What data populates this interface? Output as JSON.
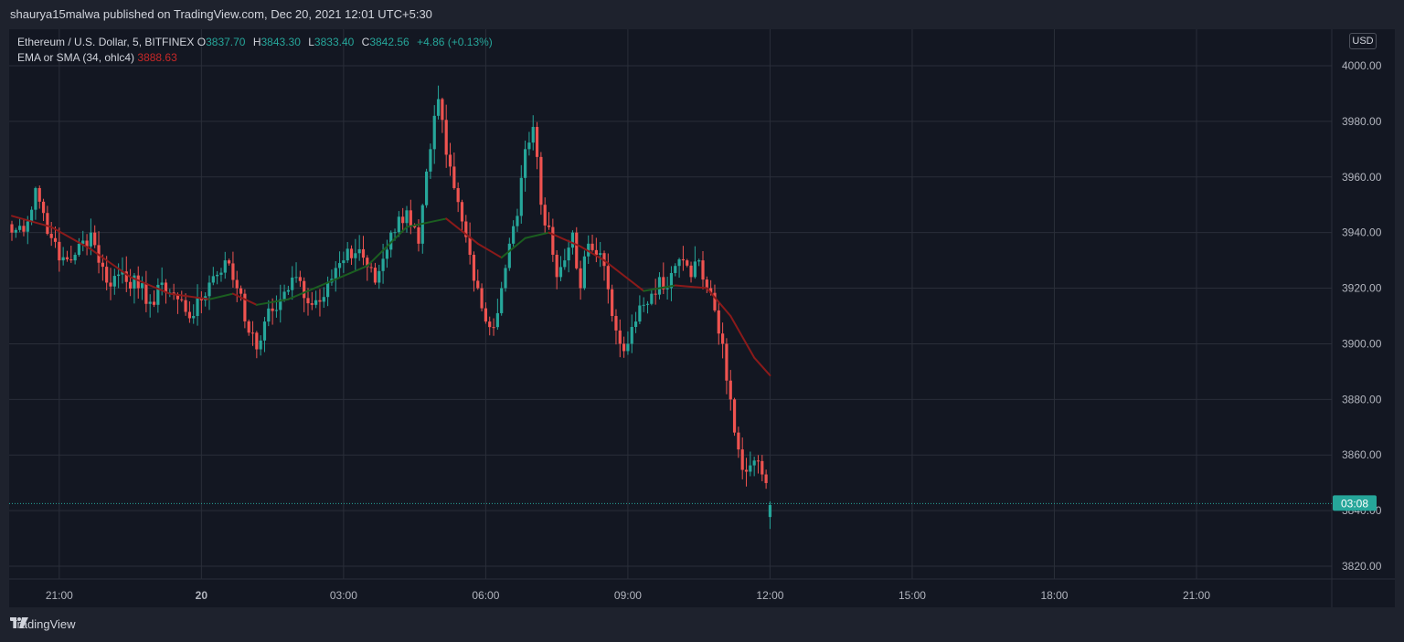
{
  "header": {
    "published_text": "shaurya15malwa published on TradingView.com, Dec 20, 2021 12:01 UTC+5:30"
  },
  "legend": {
    "symbol": "Ethereum / U.S. Dollar, 5, BITFINEX",
    "o_label": "O",
    "o_value": "3837.70",
    "h_label": "H",
    "h_value": "3843.30",
    "l_label": "L",
    "l_value": "3833.40",
    "c_label": "C",
    "c_value": "3842.56",
    "change": "+4.86 (+0.13%)",
    "indicator": "EMA or SMA (34, ohlc4)",
    "indicator_value": "3888.63"
  },
  "currency": "USD",
  "footer": {
    "brand": "TradingView"
  },
  "colors": {
    "up": "#26a69a",
    "down": "#ef5350",
    "ma_up": "#1b5e20",
    "ma_down": "#8b1a1a",
    "bg": "#131722",
    "grid": "#2a2e39",
    "text": "#b2b5be"
  },
  "chart_data": {
    "type": "candlestick",
    "y_ticks": [
      "4000.00",
      "3980.00",
      "3960.00",
      "3940.00",
      "3920.00",
      "3900.00",
      "3880.00",
      "3860.00",
      "3840.00",
      "3820.00"
    ],
    "ylim": [
      3816,
      4008
    ],
    "x_ticks": [
      {
        "label": "21:00",
        "bar": 12,
        "bold": false
      },
      {
        "label": "20",
        "bar": 48,
        "bold": true
      },
      {
        "label": "03:00",
        "bar": 84,
        "bold": false
      },
      {
        "label": "06:00",
        "bar": 120,
        "bold": false
      },
      {
        "label": "09:00",
        "bar": 156,
        "bold": false
      },
      {
        "label": "12:00",
        "bar": 192,
        "bold": false
      },
      {
        "label": "15:00",
        "bar": 228,
        "bold": false
      },
      {
        "label": "18:00",
        "bar": 264,
        "bold": false
      },
      {
        "label": "21:00",
        "bar": 300,
        "bold": false
      }
    ],
    "last_price": 3842.56,
    "countdown": "03:08",
    "key_closes": [
      [
        0,
        3940
      ],
      [
        4,
        3944
      ],
      [
        6,
        3956
      ],
      [
        10,
        3938
      ],
      [
        12,
        3930
      ],
      [
        16,
        3932
      ],
      [
        20,
        3940
      ],
      [
        24,
        3922
      ],
      [
        28,
        3926
      ],
      [
        32,
        3920
      ],
      [
        36,
        3914
      ],
      [
        38,
        3922
      ],
      [
        42,
        3916
      ],
      [
        46,
        3910
      ],
      [
        50,
        3922
      ],
      [
        54,
        3930
      ],
      [
        58,
        3918
      ],
      [
        60,
        3904
      ],
      [
        62,
        3898
      ],
      [
        64,
        3908
      ],
      [
        68,
        3916
      ],
      [
        72,
        3924
      ],
      [
        76,
        3914
      ],
      [
        80,
        3922
      ],
      [
        84,
        3930
      ],
      [
        88,
        3934
      ],
      [
        92,
        3922
      ],
      [
        96,
        3940
      ],
      [
        100,
        3948
      ],
      [
        103,
        3936
      ],
      [
        106,
        3970
      ],
      [
        108,
        3988
      ],
      [
        110,
        3968
      ],
      [
        112,
        3956
      ],
      [
        114,
        3944
      ],
      [
        116,
        3932
      ],
      [
        118,
        3920
      ],
      [
        120,
        3908
      ],
      [
        122,
        3906
      ],
      [
        124,
        3920
      ],
      [
        126,
        3936
      ],
      [
        128,
        3946
      ],
      [
        130,
        3970
      ],
      [
        132,
        3978
      ],
      [
        134,
        3950
      ],
      [
        136,
        3942
      ],
      [
        138,
        3924
      ],
      [
        140,
        3930
      ],
      [
        142,
        3940
      ],
      [
        144,
        3920
      ],
      [
        146,
        3936
      ],
      [
        148,
        3932
      ],
      [
        150,
        3928
      ],
      [
        152,
        3910
      ],
      [
        154,
        3900
      ],
      [
        156,
        3900
      ],
      [
        158,
        3908
      ],
      [
        160,
        3914
      ],
      [
        162,
        3918
      ],
      [
        164,
        3924
      ],
      [
        166,
        3920
      ],
      [
        168,
        3928
      ],
      [
        170,
        3930
      ],
      [
        172,
        3924
      ],
      [
        174,
        3930
      ],
      [
        176,
        3920
      ],
      [
        178,
        3912
      ],
      [
        180,
        3900
      ],
      [
        182,
        3880
      ],
      [
        184,
        3862
      ],
      [
        186,
        3854
      ],
      [
        188,
        3858
      ],
      [
        190,
        3853
      ],
      [
        192,
        3842
      ]
    ],
    "ma_points": [
      [
        0,
        3946
      ],
      [
        10,
        3942
      ],
      [
        20,
        3934
      ],
      [
        30,
        3924
      ],
      [
        40,
        3918
      ],
      [
        50,
        3916
      ],
      [
        56,
        3918
      ],
      [
        62,
        3914
      ],
      [
        70,
        3916
      ],
      [
        80,
        3922
      ],
      [
        90,
        3928
      ],
      [
        100,
        3942
      ],
      [
        110,
        3945
      ],
      [
        118,
        3936
      ],
      [
        124,
        3931
      ],
      [
        130,
        3938
      ],
      [
        136,
        3940
      ],
      [
        144,
        3935
      ],
      [
        150,
        3930
      ],
      [
        160,
        3919
      ],
      [
        168,
        3921
      ],
      [
        176,
        3920
      ],
      [
        182,
        3910
      ],
      [
        188,
        3895
      ],
      [
        192,
        3888.63
      ]
    ]
  }
}
